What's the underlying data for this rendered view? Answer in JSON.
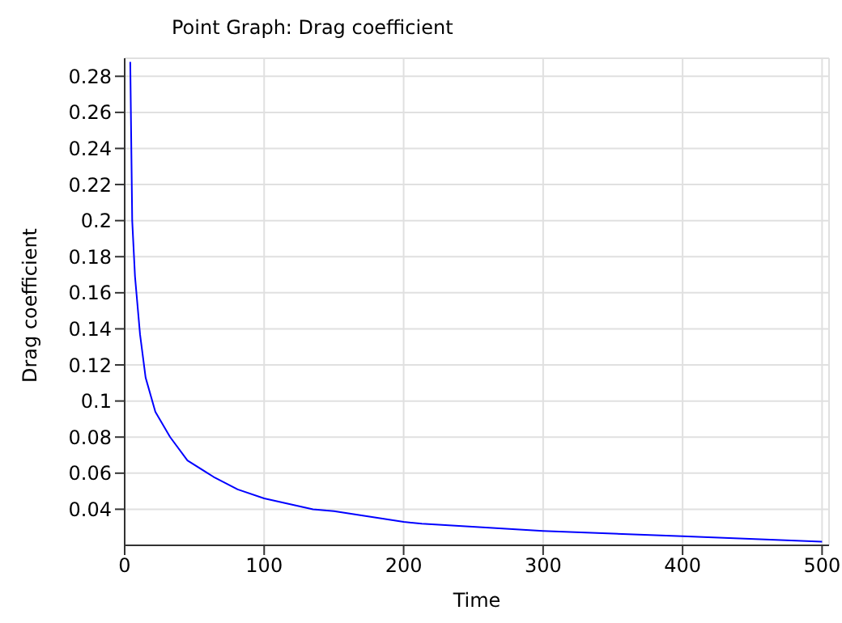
{
  "chart_data": {
    "type": "line",
    "title": "Point Graph: Drag coefficient",
    "xlabel": "Time",
    "ylabel": "Drag coefficient",
    "x": [
      4,
      5.4,
      7.4,
      11,
      15,
      22,
      32.6,
      45,
      63.6,
      81,
      100,
      135,
      150,
      200,
      213,
      300,
      400,
      500
    ],
    "series": [
      {
        "color": "#0000ff",
        "values": [
          0.288,
          0.2,
          0.169,
          0.137,
          0.113,
          0.094,
          0.08,
          0.067,
          0.058,
          0.051,
          0.046,
          0.04,
          0.039,
          0.033,
          0.032,
          0.028,
          0.025,
          0.022
        ]
      }
    ],
    "xlim": [
      0,
      505
    ],
    "xticks": [
      0,
      100,
      200,
      300,
      400,
      500
    ],
    "ylim": [
      0.02,
      0.29
    ],
    "yticks": [
      0.04,
      0.06,
      0.08,
      0.1,
      0.12,
      0.14,
      0.16,
      0.18,
      0.2,
      0.22,
      0.24,
      0.26,
      0.28
    ],
    "grid": true,
    "marker": "none",
    "line_style": "solid"
  }
}
